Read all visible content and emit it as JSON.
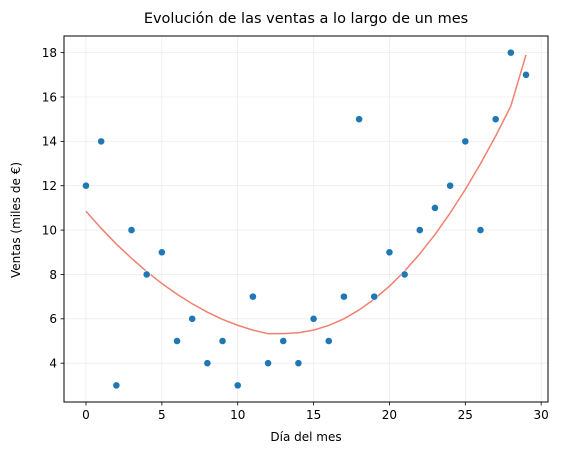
{
  "chart_data": {
    "type": "scatter",
    "title": "Evolución de las ventas a lo largo de un mes",
    "xlabel": "Día del mes",
    "ylabel": "Ventas (miles de €)",
    "xlim": [
      -1.45,
      30.45
    ],
    "ylim": [
      2.25,
      18.75
    ],
    "xticks": [
      0,
      5,
      10,
      15,
      20,
      25,
      30
    ],
    "yticks": [
      4,
      6,
      8,
      10,
      12,
      14,
      16,
      18
    ],
    "grid": true,
    "series": [
      {
        "type": "scatter",
        "color": "#1f77b4",
        "x": [
          0,
          1,
          2,
          3,
          4,
          5,
          6,
          7,
          8,
          9,
          10,
          11,
          12,
          13,
          14,
          15,
          16,
          17,
          18,
          19,
          20,
          21,
          22,
          23,
          24,
          25,
          26,
          27,
          28,
          29
        ],
        "y": [
          12,
          14,
          3,
          10,
          8,
          9,
          5,
          6,
          4,
          5,
          3,
          7,
          4,
          5,
          4,
          6,
          5,
          7,
          15,
          7,
          9,
          8,
          10,
          11,
          12,
          14,
          10,
          15,
          18,
          17
        ]
      },
      {
        "type": "line",
        "color": "#f08070",
        "x": [
          0,
          1,
          2,
          3,
          4,
          5,
          6,
          7,
          8,
          9,
          10,
          11,
          12,
          13,
          14,
          15,
          16,
          17,
          18,
          19,
          20,
          21,
          22,
          23,
          24,
          25,
          26,
          27,
          28,
          29
        ],
        "y": [
          10.85,
          10.08,
          9.37,
          8.73,
          8.13,
          7.59,
          7.11,
          6.68,
          6.3,
          5.97,
          5.71,
          5.49,
          5.33,
          5.33,
          5.37,
          5.49,
          5.7,
          6.0,
          6.4,
          6.89,
          7.47,
          8.15,
          8.93,
          9.8,
          10.77,
          11.83,
          12.99,
          14.24,
          15.59,
          17.9
        ]
      }
    ]
  }
}
